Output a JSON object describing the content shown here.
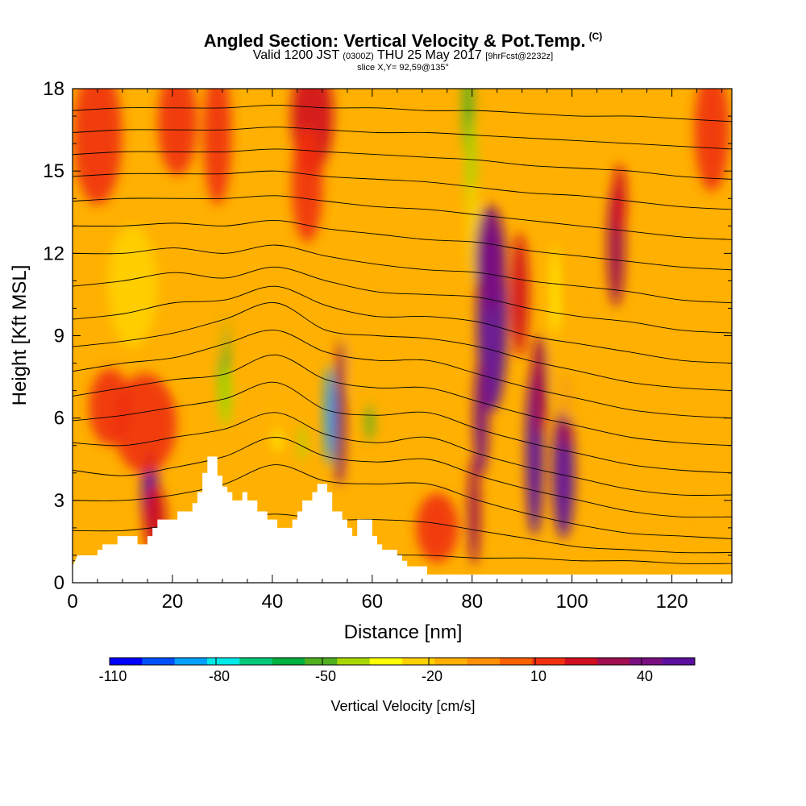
{
  "header": {
    "title": "Angled Section: Vertical Velocity & Pot.Temp.",
    "title_tag": "(C)",
    "valid_prefix": "Valid 1200 JST",
    "valid_utc": "(0300Z)",
    "valid_date": "THU 25 May 2017",
    "valid_fcst": "[9hrFcst@2232z]",
    "slice": "slice X,Y= 92,59@135°"
  },
  "chart_data": {
    "type": "heatmap",
    "xlabel": "Distance [nm]",
    "ylabel": "Height [Kft MSL]",
    "xlim": [
      0,
      132
    ],
    "ylim": [
      0,
      18
    ],
    "x_ticks": [
      0,
      20,
      40,
      60,
      80,
      100,
      120
    ],
    "y_ticks": [
      0,
      3,
      6,
      9,
      12,
      15,
      18
    ],
    "colorbar": {
      "label": "Vertical Velocity [cm/s]",
      "tick_labels": [
        "-110",
        "-80",
        "-50",
        "-20",
        "10",
        "40"
      ],
      "tick_values": [
        -110,
        -80,
        -50,
        -20,
        10,
        40
      ],
      "min": -110,
      "max": 55,
      "colors": [
        "#0000ff",
        "#0050ff",
        "#00a0ff",
        "#00e8e8",
        "#00c878",
        "#00b040",
        "#50b020",
        "#a8d800",
        "#ffff00",
        "#ffd000",
        "#ffb000",
        "#ff9000",
        "#ff6000",
        "#f03010",
        "#d01020",
        "#a01050",
        "#7a1080",
        "#5c10a0"
      ]
    },
    "terrain_profile_kft": [
      [
        0,
        0.6
      ],
      [
        1,
        1
      ],
      [
        5,
        1
      ],
      [
        5,
        1.2
      ],
      [
        6,
        1.2
      ],
      [
        6,
        1.4
      ],
      [
        9,
        1.4
      ],
      [
        9,
        1.7
      ],
      [
        13,
        1.7
      ],
      [
        13,
        1.4
      ],
      [
        15,
        1.4
      ],
      [
        15,
        1.7
      ],
      [
        16,
        1.7
      ],
      [
        16,
        2
      ],
      [
        17,
        2
      ],
      [
        17,
        2.3
      ],
      [
        21,
        2.3
      ],
      [
        21,
        2.6
      ],
      [
        24,
        2.6
      ],
      [
        24,
        2.9
      ],
      [
        25,
        2.9
      ],
      [
        25,
        3.3
      ],
      [
        26,
        3.3
      ],
      [
        26,
        4
      ],
      [
        27,
        4
      ],
      [
        27,
        4.6
      ],
      [
        29,
        4.6
      ],
      [
        29,
        3.9
      ],
      [
        30,
        3.9
      ],
      [
        30,
        3.5
      ],
      [
        31,
        3.5
      ],
      [
        31,
        3.3
      ],
      [
        32,
        3.3
      ],
      [
        32,
        3
      ],
      [
        34,
        3
      ],
      [
        34,
        3.3
      ],
      [
        35,
        3.3
      ],
      [
        35,
        3
      ],
      [
        37,
        3
      ],
      [
        37,
        2.6
      ],
      [
        39,
        2.6
      ],
      [
        39,
        2.3
      ],
      [
        41,
        2.3
      ],
      [
        41,
        2
      ],
      [
        44,
        2
      ],
      [
        44,
        2.3
      ],
      [
        45,
        2.3
      ],
      [
        45,
        2.6
      ],
      [
        46,
        2.6
      ],
      [
        46,
        3
      ],
      [
        48,
        3
      ],
      [
        48,
        3.3
      ],
      [
        49,
        3.3
      ],
      [
        49,
        3.6
      ],
      [
        51,
        3.6
      ],
      [
        51,
        3.3
      ],
      [
        52,
        3.3
      ],
      [
        52,
        2.6
      ],
      [
        54,
        2.6
      ],
      [
        54,
        2.3
      ],
      [
        55,
        2.3
      ],
      [
        55,
        2
      ],
      [
        56,
        2
      ],
      [
        56,
        1.7
      ],
      [
        57,
        1.7
      ],
      [
        57,
        2.3
      ],
      [
        60,
        2.3
      ],
      [
        60,
        1.7
      ],
      [
        61,
        1.7
      ],
      [
        61,
        1.4
      ],
      [
        62,
        1.4
      ],
      [
        62,
        1.2
      ],
      [
        65,
        1.2
      ],
      [
        65,
        1
      ],
      [
        66,
        1
      ],
      [
        66,
        0.8
      ],
      [
        67,
        0.8
      ],
      [
        67,
        0.6
      ],
      [
        71,
        0.6
      ],
      [
        71,
        0.3
      ],
      [
        132,
        0.3
      ]
    ],
    "velocity_cells": [
      {
        "x": 15.5,
        "y": 3.3,
        "sx": 1.2,
        "sy": 1.1,
        "v": 50
      },
      {
        "x": 16.5,
        "y": 2.3,
        "sx": 1.6,
        "sy": 0.9,
        "v": 25
      },
      {
        "x": 30.2,
        "y": 8.1,
        "sx": 0.9,
        "sy": 1.4,
        "v": -55
      },
      {
        "x": 30.6,
        "y": 6.8,
        "sx": 0.9,
        "sy": 0.8,
        "v": -45
      },
      {
        "x": 51.4,
        "y": 6.1,
        "sx": 0.7,
        "sy": 1.3,
        "v": -90
      },
      {
        "x": 53.5,
        "y": 5.9,
        "sx": 0.8,
        "sy": 1.7,
        "v": 45
      },
      {
        "x": 53.8,
        "y": 8,
        "sx": 0.6,
        "sy": 0.6,
        "v": 30
      },
      {
        "x": 59.5,
        "y": 6,
        "sx": 0.6,
        "sy": 0.6,
        "v": -50
      },
      {
        "x": 46,
        "y": 5.1,
        "sx": 0.5,
        "sy": 0.5,
        "v": -40
      },
      {
        "x": 41,
        "y": 5.7,
        "sx": 0.6,
        "sy": 0.7,
        "v": -35
      },
      {
        "x": 79.2,
        "y": 17.3,
        "sx": 0.8,
        "sy": 1.3,
        "v": -55
      },
      {
        "x": 79.8,
        "y": 14.8,
        "sx": 0.8,
        "sy": 1.5,
        "v": -45
      },
      {
        "x": 80.2,
        "y": 12.8,
        "sx": 0.9,
        "sy": 1.3,
        "v": -25
      },
      {
        "x": 84,
        "y": 9.6,
        "sx": 2.2,
        "sy": 2.4,
        "v": 55
      },
      {
        "x": 83.6,
        "y": 11.8,
        "sx": 2.2,
        "sy": 1.4,
        "v": 40
      },
      {
        "x": 81.8,
        "y": 6,
        "sx": 1.1,
        "sy": 1.5,
        "v": 45
      },
      {
        "x": 80.4,
        "y": 2.6,
        "sx": 0.9,
        "sy": 1.4,
        "v": 30
      },
      {
        "x": 92.5,
        "y": 4.8,
        "sx": 1.3,
        "sy": 2.2,
        "v": 50
      },
      {
        "x": 93.5,
        "y": 7.2,
        "sx": 1.2,
        "sy": 1.3,
        "v": 35
      },
      {
        "x": 98.3,
        "y": 4,
        "sx": 1.6,
        "sy": 1.7,
        "v": 55
      },
      {
        "x": 98.8,
        "y": 6.3,
        "sx": 1.1,
        "sy": 1,
        "v": 35
      },
      {
        "x": 96.6,
        "y": 10.5,
        "sx": 0.5,
        "sy": 1.3,
        "v": -30
      },
      {
        "x": 108.8,
        "y": 12.3,
        "sx": 1.3,
        "sy": 1.6,
        "v": 30
      },
      {
        "x": 109.5,
        "y": 14,
        "sx": 1,
        "sy": 0.9,
        "v": 20
      },
      {
        "x": 89.5,
        "y": 10.5,
        "sx": 1.3,
        "sy": 1.6,
        "v": 20
      },
      {
        "x": 14.5,
        "y": 5.8,
        "sx": 4.5,
        "sy": 1.3,
        "v": 15
      },
      {
        "x": 7.5,
        "y": 6.4,
        "sx": 3,
        "sy": 1,
        "v": 12
      },
      {
        "x": 48,
        "y": 17,
        "sx": 3,
        "sy": 1.5,
        "v": 25
      },
      {
        "x": 47,
        "y": 14.5,
        "sx": 2.2,
        "sy": 1.5,
        "v": 12
      },
      {
        "x": 5,
        "y": 16.3,
        "sx": 3.5,
        "sy": 1.8,
        "v": 15
      },
      {
        "x": 21,
        "y": 16.8,
        "sx": 2.8,
        "sy": 1.4,
        "v": 12
      },
      {
        "x": 29,
        "y": 16.3,
        "sx": 2,
        "sy": 1.8,
        "v": 12
      },
      {
        "x": 128,
        "y": 16.5,
        "sx": 2.5,
        "sy": 1.6,
        "v": 12
      },
      {
        "x": 73,
        "y": 2,
        "sx": 3,
        "sy": 0.9,
        "v": 12
      },
      {
        "x": 24,
        "y": 10,
        "sx": 5,
        "sy": 2.2,
        "v": -18
      },
      {
        "x": 12,
        "y": 10.8,
        "sx": 3.5,
        "sy": 1.6,
        "v": -20
      },
      {
        "x": 60,
        "y": 8.5,
        "sx": 3.5,
        "sy": 1.5,
        "v": -18
      },
      {
        "x": 100,
        "y": 8,
        "sx": 3,
        "sy": 1.5,
        "v": -15
      },
      {
        "x": 117,
        "y": 3,
        "sx": 4,
        "sy": 1.5,
        "v": -15
      },
      {
        "x": 39,
        "y": 7,
        "sx": 4,
        "sy": 1.2,
        "v": -14
      }
    ],
    "isentropes_kft": [
      [
        0.8,
        0.8,
        0.9,
        1,
        1.1,
        1,
        1,
        1,
        0.9,
        0.9,
        0.8,
        0.8,
        0.7,
        0.7
      ],
      [
        1.9,
        1.9,
        2.1,
        2.3,
        2.5,
        2.3,
        2.3,
        2.2,
        1.9,
        1.6,
        1.3,
        1.2,
        1.1,
        1.1
      ],
      [
        3,
        3,
        3.2,
        3.6,
        4.3,
        3.7,
        3.6,
        3.6,
        3,
        2.5,
        2.1,
        1.8,
        1.7,
        1.6
      ],
      [
        4.1,
        3.9,
        4.2,
        4.6,
        5.3,
        4.6,
        4.4,
        4.5,
        3.9,
        3.4,
        3,
        2.6,
        2.4,
        2.4
      ],
      [
        5.1,
        5,
        5.3,
        5.6,
        6.2,
        5.4,
        5.1,
        5.3,
        4.7,
        4.2,
        3.8,
        3.4,
        3.2,
        3.2
      ],
      [
        5.9,
        6.1,
        6.4,
        6.7,
        7.3,
        6.3,
        6.1,
        6.2,
        5.6,
        5.1,
        4.7,
        4.3,
        4.1,
        4
      ],
      [
        6.8,
        7.1,
        7.4,
        7.6,
        8.3,
        7.4,
        7.1,
        7.1,
        6.6,
        6.1,
        5.7,
        5.3,
        5.1,
        5
      ],
      [
        7.7,
        8,
        8.2,
        8.7,
        9.2,
        8.4,
        8.1,
        8.1,
        7.6,
        7.1,
        6.7,
        6.3,
        6.1,
        6
      ],
      [
        8.6,
        8.8,
        9.1,
        9.6,
        10.2,
        9.2,
        9,
        8.9,
        8.6,
        8.1,
        7.7,
        7.3,
        7.1,
        7
      ],
      [
        9.6,
        9.8,
        10.2,
        10.3,
        10.8,
        10.1,
        9.7,
        9.7,
        9.5,
        9,
        8.7,
        8.4,
        8.1,
        8
      ],
      [
        10.8,
        11,
        11.3,
        11.1,
        11.5,
        11,
        10.6,
        10.5,
        10.4,
        10,
        9.7,
        9.5,
        9.2,
        9.1
      ],
      [
        12,
        12,
        12.2,
        12,
        12.3,
        11.9,
        11.6,
        11.4,
        11.3,
        11,
        10.8,
        10.6,
        10.3,
        10.2
      ],
      [
        13,
        13,
        13.1,
        13,
        13.2,
        12.9,
        12.7,
        12.5,
        12.4,
        12.1,
        11.9,
        11.7,
        11.5,
        11.4
      ],
      [
        13.9,
        14,
        14,
        14,
        14.1,
        13.9,
        13.7,
        13.6,
        13.4,
        13.2,
        13,
        12.8,
        12.6,
        12.5
      ],
      [
        14.8,
        14.9,
        14.9,
        14.9,
        15,
        14.8,
        14.7,
        14.6,
        14.4,
        14.2,
        14.1,
        13.9,
        13.7,
        13.6
      ],
      [
        15.6,
        15.7,
        15.7,
        15.7,
        15.8,
        15.7,
        15.6,
        15.5,
        15.4,
        15.2,
        15.1,
        15,
        14.8,
        14.7
      ],
      [
        16.4,
        16.5,
        16.5,
        16.5,
        16.6,
        16.5,
        16.4,
        16.4,
        16.3,
        16.2,
        16.1,
        16,
        15.9,
        15.8
      ],
      [
        17.2,
        17.3,
        17.3,
        17.3,
        17.4,
        17.3,
        17.3,
        17.2,
        17.2,
        17.1,
        17,
        17,
        16.9,
        16.8
      ]
    ]
  }
}
